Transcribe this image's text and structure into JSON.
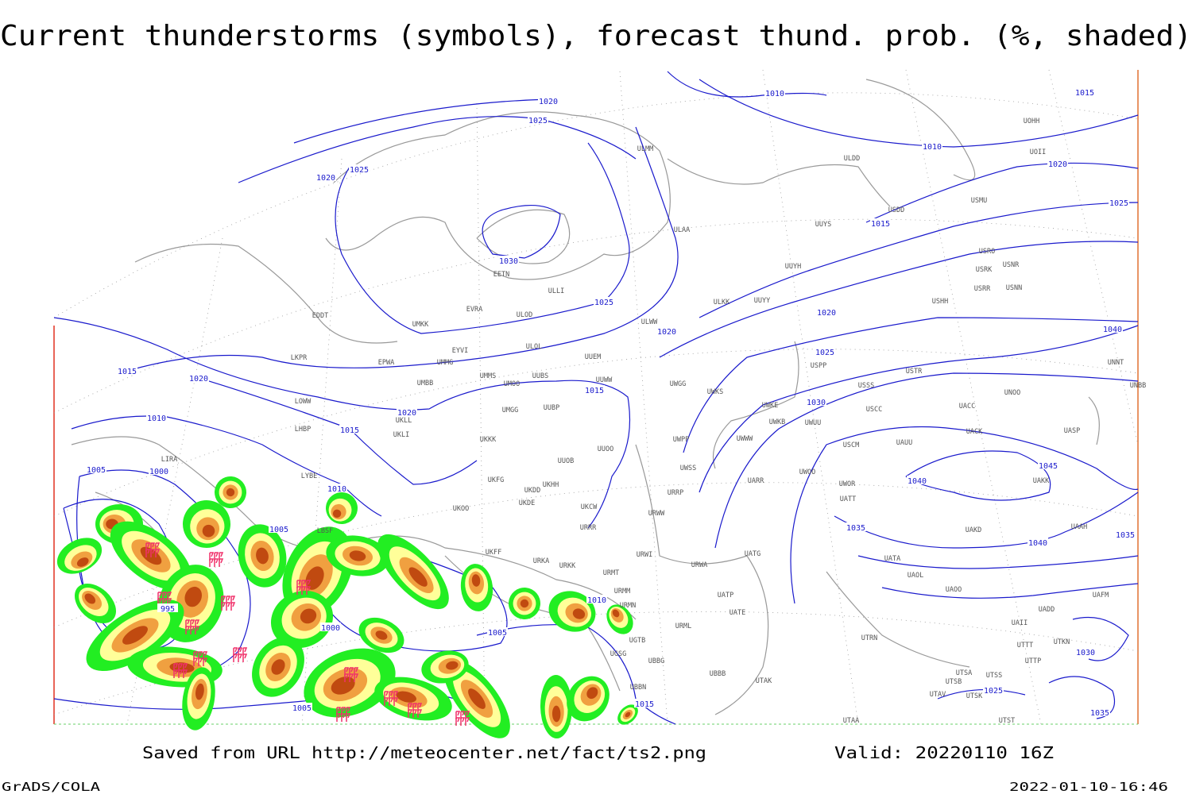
{
  "header": {
    "title": "Current thunderstorms (symbols), forecast thund. prob. (%, shaded)"
  },
  "footer": {
    "source": "Saved from URL http://meteocenter.net/fact/ts2.png",
    "valid": "Valid: 20220110 16Z",
    "software": "GrADS/COLA",
    "timestamp": "2022-01-10-16:46"
  },
  "map": {
    "isobar_labels": [
      "1020",
      "1025",
      "1020",
      "1025",
      "1010",
      "1015",
      "1010",
      "1020",
      "1025",
      "1015",
      "1030",
      "1025",
      "1020",
      "1020",
      "1025",
      "1040",
      "1015",
      "1020",
      "1015",
      "1020",
      "1030",
      "1010",
      "1015",
      "1005",
      "1000",
      "1010",
      "1040",
      "1045",
      "1005",
      "1035",
      "1040",
      "1035",
      "995",
      "1000",
      "1010",
      "1005",
      "1030",
      "1005",
      "1015",
      "1025",
      "1035"
    ],
    "stations": [
      "ULMM",
      "ULDD",
      "USDD",
      "USMU",
      "UOII",
      "UOHH",
      "ULAA",
      "UUYS",
      "UUYH",
      "UUYY",
      "ULKK",
      "EETN",
      "ULLI",
      "EVRA",
      "ULOD",
      "UMKK",
      "EDDT",
      "ULWW",
      "ULOL",
      "EYVI",
      "UUEM",
      "EPWA",
      "UMMG",
      "LKPR",
      "UMMS",
      "UUBS",
      "UMOO",
      "UUWW",
      "UMBB",
      "UWGG",
      "UWKS",
      "USPP",
      "USSS",
      "USTR",
      "UNOO",
      "UNBB",
      "UNNT",
      "LOWW",
      "UWKE",
      "UMGG",
      "UUBP",
      "UKLL",
      "UKLI",
      "LHBP",
      "UWKB",
      "UWUU",
      "USCC",
      "UACC",
      "UACK",
      "UASP",
      "UKKK",
      "UUOO",
      "UWPP",
      "UWWW",
      "USCM",
      "UAUU",
      "LIRA",
      "UUOB",
      "UWSS",
      "UWOO",
      "UWOR",
      "LYBE",
      "UKHH",
      "UKDD",
      "UKFG",
      "UARR",
      "UKDE",
      "URRP",
      "UATT",
      "UAKK",
      "UKOO",
      "UKCW",
      "URWW",
      "UAKD",
      "UAAH",
      "URRR",
      "LBSF",
      "UKFF",
      "URKA",
      "URKK",
      "URWI",
      "UATG",
      "UATA",
      "UAOL",
      "UAOO",
      "URMT",
      "URWA",
      "URMM",
      "UATP",
      "URMN",
      "UATE",
      "UADD",
      "UAFM",
      "URML",
      "UAII",
      "UGTB",
      "UTRN",
      "UTTT",
      "UTKN",
      "UGSG",
      "UBBG",
      "UTTP",
      "UBBB",
      "UTAK",
      "UTSA",
      "UTSS",
      "UTSB",
      "UBBN",
      "UTAV",
      "UTSK",
      "UTAA",
      "UTST",
      "USRO",
      "USRK",
      "USNR",
      "USRR",
      "USNN",
      "USHH"
    ]
  }
}
